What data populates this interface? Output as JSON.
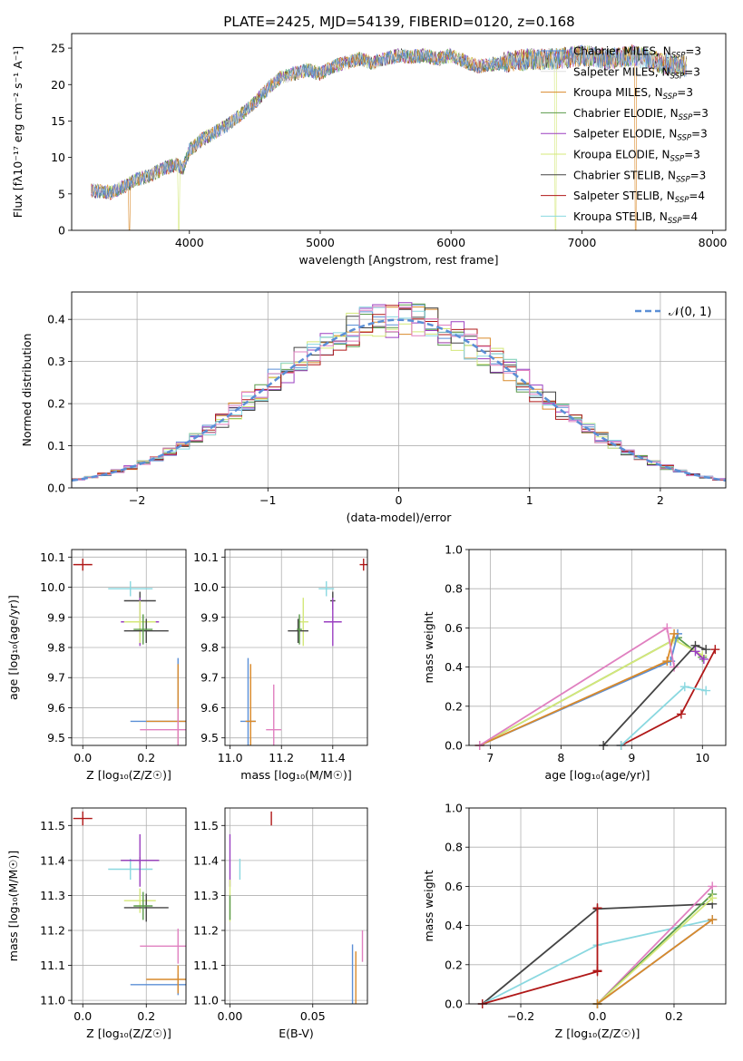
{
  "figure_title": "PLATE=2425, MJD=54139, FIBERID=0120, z=0.168",
  "colors": {
    "Chabrier MILES": "#5b8fd6",
    "Salpeter MILES": "#e0e0e0",
    "Kroupa MILES": "#d98a2b",
    "Chabrier ELODIE": "#5a9a4a",
    "Salpeter ELODIE": "#9a3fc0",
    "Kroupa ELODIE": "#d4e87a",
    "Chabrier STELIB": "#444444",
    "Salpeter STELIB": "#b01818",
    "Kroupa STELIB": "#8ad8e0",
    "pink": "#e080c0",
    "gaussian": "#5b8fd6"
  },
  "chart_data": [
    {
      "id": "spectrum",
      "type": "line",
      "title": "PLATE=2425, MJD=54139, FIBERID=0120, z=0.168",
      "xlabel": "wavelength [Angstrom, rest frame]",
      "ylabel": "Flux [fλ10⁻¹⁷ erg cm⁻² s⁻¹ A⁻¹]",
      "xlim": [
        3100,
        8100
      ],
      "ylim": [
        0,
        27
      ],
      "xticks": [
        "4000",
        "5000",
        "6000",
        "7000",
        "8000"
      ],
      "yticks": [
        "0",
        "5",
        "10",
        "15",
        "20",
        "25"
      ],
      "grid": false,
      "legend_position": "right",
      "legend": [
        {
          "label": "Chabrier MILES, N",
          "sub": "SSP",
          "suffix": "=3",
          "color": "Chabrier MILES"
        },
        {
          "label": "Salpeter MILES, N",
          "sub": "SSP",
          "suffix": "=3",
          "color": "Salpeter MILES"
        },
        {
          "label": "Kroupa MILES, N",
          "sub": "SSP",
          "suffix": "=3",
          "color": "Kroupa MILES"
        },
        {
          "label": "Chabrier ELODIE, N",
          "sub": "SSP",
          "suffix": "=3",
          "color": "Chabrier ELODIE"
        },
        {
          "label": "Salpeter ELODIE, N",
          "sub": "SSP",
          "suffix": "=3",
          "color": "Salpeter ELODIE"
        },
        {
          "label": "Kroupa ELODIE, N",
          "sub": "SSP",
          "suffix": "=3",
          "color": "Kroupa ELODIE"
        },
        {
          "label": "Chabrier STELIB, N",
          "sub": "SSP",
          "suffix": "=3",
          "color": "Chabrier STELIB"
        },
        {
          "label": "Salpeter STELIB, N",
          "sub": "SSP",
          "suffix": "=4",
          "color": "Salpeter STELIB"
        },
        {
          "label": "Kroupa STELIB, N",
          "sub": "SSP",
          "suffix": "=4",
          "color": "Kroupa STELIB"
        }
      ],
      "continuum": [
        [
          3250,
          5.5
        ],
        [
          3400,
          5.2
        ],
        [
          3500,
          6.0
        ],
        [
          3600,
          7.0
        ],
        [
          3700,
          7.5
        ],
        [
          3800,
          8.5
        ],
        [
          3900,
          9.0
        ],
        [
          3950,
          8.5
        ],
        [
          4000,
          11.0
        ],
        [
          4100,
          12.5
        ],
        [
          4200,
          13.5
        ],
        [
          4300,
          14.5
        ],
        [
          4400,
          16.0
        ],
        [
          4500,
          17.5
        ],
        [
          4600,
          19.5
        ],
        [
          4700,
          21.0
        ],
        [
          4800,
          21.5
        ],
        [
          4900,
          22.0
        ],
        [
          5000,
          21.5
        ],
        [
          5100,
          22.5
        ],
        [
          5200,
          23.0
        ],
        [
          5300,
          23.5
        ],
        [
          5400,
          23.0
        ],
        [
          5500,
          23.5
        ],
        [
          5600,
          24.0
        ],
        [
          5700,
          23.8
        ],
        [
          5800,
          24.0
        ],
        [
          5900,
          23.5
        ],
        [
          6000,
          24.0
        ],
        [
          6200,
          22.5
        ],
        [
          6400,
          23.0
        ],
        [
          6600,
          23.5
        ],
        [
          6800,
          23.5
        ],
        [
          7000,
          24.0
        ],
        [
          7200,
          23.5
        ],
        [
          7400,
          24.0
        ],
        [
          7600,
          23.0
        ],
        [
          7800,
          22.5
        ]
      ],
      "drops": [
        {
          "x": 3540,
          "series": "Kroupa MILES"
        },
        {
          "x": 3920,
          "series": "Kroupa ELODIE"
        },
        {
          "x": 6800,
          "series": "Kroupa ELODIE"
        },
        {
          "x": 7410,
          "series": "Kroupa MILES"
        }
      ]
    },
    {
      "id": "residuals",
      "type": "histogram",
      "xlabel": "(data-model)/error",
      "ylabel": "Normed distribution",
      "xlim": [
        -2.5,
        2.5
      ],
      "ylim": [
        0,
        0.465
      ],
      "xticks": [
        "−2",
        "−1",
        "0",
        "1",
        "2"
      ],
      "yticks": [
        "0.0",
        "0.1",
        "0.2",
        "0.3",
        "0.4"
      ],
      "grid": true,
      "legend_position": "top-right",
      "legend": [
        {
          "label": "𝒩(0, 1)",
          "color": "gaussian",
          "style": "dashed"
        }
      ],
      "bin_width": 0.1
    },
    {
      "id": "age-vs-Z",
      "type": "errorbar",
      "xlabel": "Z [log₁₀(Z/Z☉)]",
      "ylabel": "age  [log₁₀(age/yr)]",
      "xlim": [
        -0.035,
        0.325
      ],
      "ylim": [
        9.475,
        10.125
      ],
      "xticks": [
        "0.0",
        "0.2"
      ],
      "yticks": [
        "9.5",
        "9.6",
        "9.7",
        "9.8",
        "9.9",
        "10.0",
        "10.1"
      ],
      "grid": true,
      "points": [
        {
          "x": 0.0,
          "y": 10.075,
          "xerr": 0.03,
          "yerr": 0.02,
          "color": "Salpeter STELIB"
        },
        {
          "x": 0.15,
          "y": 9.995,
          "xerr": 0.07,
          "yerr": 0.025,
          "color": "Kroupa STELIB"
        },
        {
          "x": 0.18,
          "y": 9.955,
          "xerr": 0.05,
          "yerr": 0.03,
          "color": "Chabrier STELIB"
        },
        {
          "x": 0.18,
          "y": 9.885,
          "xerr": 0.06,
          "yerr": 0.08,
          "color": "Salpeter ELODIE"
        },
        {
          "x": 0.18,
          "y": 9.885,
          "xerr": 0.05,
          "yerr": 0.07,
          "color": "Kroupa ELODIE"
        },
        {
          "x": 0.2,
          "y": 9.855,
          "xerr": 0.07,
          "yerr": 0.04,
          "color": "Chabrier STELIB"
        },
        {
          "x": 0.19,
          "y": 9.86,
          "xerr": 0.03,
          "yerr": 0.05,
          "color": "Chabrier ELODIE"
        },
        {
          "x": 0.3,
          "y": 9.555,
          "xerr": 0.15,
          "yerr": 0.21,
          "color": "Chabrier MILES"
        },
        {
          "x": 0.3,
          "y": 9.555,
          "xerr": 0.1,
          "yerr": 0.19,
          "color": "Kroupa MILES"
        },
        {
          "x": 0.3,
          "y": 9.527,
          "xerr": 0.12,
          "yerr": 0.07,
          "color": "pink"
        }
      ]
    },
    {
      "id": "age-vs-mass",
      "type": "errorbar",
      "xlabel": "mass [log₁₀(M/M☉)]",
      "ylabel": "",
      "xlim": [
        10.98,
        11.535
      ],
      "ylim": [
        9.475,
        10.125
      ],
      "xticks": [
        "11.0",
        "11.2",
        "11.4"
      ],
      "yticks": [
        "9.5",
        "9.6",
        "9.7",
        "9.8",
        "9.9",
        "10.0",
        "10.1"
      ],
      "grid": true,
      "points": [
        {
          "x": 11.52,
          "y": 10.075,
          "xerr": 0.015,
          "yerr": 0.02,
          "color": "Salpeter STELIB"
        },
        {
          "x": 11.375,
          "y": 9.995,
          "xerr": 0.03,
          "yerr": 0.025,
          "color": "Kroupa STELIB"
        },
        {
          "x": 11.4,
          "y": 9.955,
          "xerr": 0.01,
          "yerr": 0.03,
          "color": "Chabrier STELIB"
        },
        {
          "x": 11.4,
          "y": 9.885,
          "xerr": 0.035,
          "yerr": 0.08,
          "color": "Salpeter ELODIE"
        },
        {
          "x": 11.285,
          "y": 9.885,
          "xerr": 0.02,
          "yerr": 0.08,
          "color": "Kroupa ELODIE"
        },
        {
          "x": 11.265,
          "y": 9.855,
          "xerr": 0.04,
          "yerr": 0.04,
          "color": "Chabrier STELIB"
        },
        {
          "x": 11.27,
          "y": 9.86,
          "xerr": 0.01,
          "yerr": 0.05,
          "color": "Chabrier ELODIE"
        },
        {
          "x": 11.07,
          "y": 9.555,
          "xerr": 0.03,
          "yerr": 0.21,
          "color": "Chabrier MILES"
        },
        {
          "x": 11.08,
          "y": 9.555,
          "xerr": 0.02,
          "yerr": 0.19,
          "color": "Kroupa MILES"
        },
        {
          "x": 11.17,
          "y": 9.527,
          "xerr": 0.03,
          "yerr": 0.15,
          "color": "pink"
        }
      ]
    },
    {
      "id": "massweight-vs-age",
      "type": "line",
      "xlabel": "age  [log₁₀(age/yr)]",
      "ylabel": "mass weight",
      "xlim": [
        6.7,
        10.33
      ],
      "ylim": [
        0,
        1
      ],
      "xticks": [
        "7",
        "8",
        "9",
        "10"
      ],
      "yticks": [
        "0.0",
        "0.2",
        "0.4",
        "0.6",
        "0.8",
        "1.0"
      ],
      "grid": true,
      "series": [
        {
          "color": "Chabrier ELODIE",
          "x": [
            6.85,
            9.65,
            10.0
          ],
          "y": [
            0.0,
            0.55,
            0.45
          ]
        },
        {
          "color": "Kroupa ELODIE",
          "x": [
            6.85,
            9.6,
            10.0
          ],
          "y": [
            0.0,
            0.54,
            0.46
          ]
        },
        {
          "color": "Chabrier MILES",
          "x": [
            6.85,
            9.55,
            9.65
          ],
          "y": [
            0.0,
            0.43,
            0.57
          ]
        },
        {
          "color": "Kroupa MILES",
          "x": [
            6.85,
            9.5,
            9.6
          ],
          "y": [
            0.0,
            0.43,
            0.57
          ]
        },
        {
          "color": "pink",
          "x": [
            6.85,
            9.5,
            9.6
          ],
          "y": [
            0.0,
            0.6,
            0.4
          ]
        },
        {
          "color": "Chabrier STELIB",
          "x": [
            8.6,
            9.9,
            10.05
          ],
          "y": [
            0.0,
            0.51,
            0.49
          ]
        },
        {
          "color": "Salpeter STELIB",
          "x": [
            8.85,
            9.7,
            10.18
          ],
          "y": [
            0.0,
            0.16,
            0.49
          ]
        },
        {
          "color": "Kroupa STELIB",
          "x": [
            8.85,
            9.75,
            10.05
          ],
          "y": [
            0.0,
            0.3,
            0.28
          ]
        },
        {
          "color": "Salpeter ELODIE",
          "x": [
            9.9,
            10.02
          ],
          "y": [
            0.48,
            0.44
          ]
        }
      ]
    },
    {
      "id": "mass-vs-Z",
      "type": "errorbar",
      "xlabel": "Z [log₁₀(Z/Z☉)]",
      "ylabel": "mass [log₁₀(M/M☉)]",
      "xlim": [
        -0.035,
        0.325
      ],
      "ylim": [
        10.99,
        11.55
      ],
      "xticks": [
        "0.0",
        "0.2"
      ],
      "yticks": [
        "11.0",
        "11.1",
        "11.2",
        "11.3",
        "11.4",
        "11.5"
      ],
      "grid": true,
      "points": [
        {
          "x": 0.0,
          "y": 11.52,
          "xerr": 0.03,
          "yerr": 0.02,
          "color": "Salpeter STELIB"
        },
        {
          "x": 0.15,
          "y": 11.375,
          "xerr": 0.07,
          "yerr": 0.03,
          "color": "Kroupa STELIB"
        },
        {
          "x": 0.18,
          "y": 11.4,
          "xerr": 0.06,
          "yerr": 0.01,
          "color": "Chabrier STELIB"
        },
        {
          "x": 0.18,
          "y": 11.4,
          "xerr": 0.06,
          "yerr": 0.075,
          "color": "Salpeter ELODIE"
        },
        {
          "x": 0.18,
          "y": 11.285,
          "xerr": 0.05,
          "yerr": 0.035,
          "color": "Kroupa ELODIE"
        },
        {
          "x": 0.2,
          "y": 11.265,
          "xerr": 0.07,
          "yerr": 0.04,
          "color": "Chabrier STELIB"
        },
        {
          "x": 0.19,
          "y": 11.27,
          "xerr": 0.03,
          "yerr": 0.04,
          "color": "Chabrier ELODIE"
        },
        {
          "x": 0.3,
          "y": 11.045,
          "xerr": 0.15,
          "yerr": 0.03,
          "color": "Chabrier MILES"
        },
        {
          "x": 0.3,
          "y": 11.06,
          "xerr": 0.1,
          "yerr": 0.04,
          "color": "Kroupa MILES"
        },
        {
          "x": 0.3,
          "y": 11.155,
          "xerr": 0.12,
          "yerr": 0.05,
          "color": "pink"
        }
      ]
    },
    {
      "id": "mass-vs-EBV",
      "type": "errorbar",
      "xlabel": "E(B-V)",
      "ylabel": "",
      "xlim": [
        -0.003,
        0.083
      ],
      "ylim": [
        10.99,
        11.55
      ],
      "xticks": [
        "0.00",
        "0.05"
      ],
      "yticks": [
        "11.0",
        "11.1",
        "11.2",
        "11.3",
        "11.4",
        "11.5"
      ],
      "grid": true,
      "points": [
        {
          "x": 0.025,
          "y": 11.52,
          "xerr": 0.0,
          "yerr": 0.02,
          "color": "Salpeter STELIB"
        },
        {
          "x": 0.006,
          "y": 11.375,
          "xerr": 0.0,
          "yerr": 0.03,
          "color": "Kroupa STELIB"
        },
        {
          "x": 0.0,
          "y": 11.4,
          "xerr": 0.0,
          "yerr": 0.075,
          "color": "Salpeter ELODIE"
        },
        {
          "x": 0.0,
          "y": 11.285,
          "xerr": 0.0,
          "yerr": 0.06,
          "color": "Kroupa ELODIE"
        },
        {
          "x": 0.0,
          "y": 11.265,
          "xerr": 0.0,
          "yerr": 0.035,
          "color": "Chabrier ELODIE"
        },
        {
          "x": 0.074,
          "y": 11.075,
          "xerr": 0.0,
          "yerr": 0.085,
          "color": "Chabrier MILES"
        },
        {
          "x": 0.076,
          "y": 11.06,
          "xerr": 0.0,
          "yerr": 0.08,
          "color": "Kroupa MILES"
        },
        {
          "x": 0.08,
          "y": 11.155,
          "xerr": 0.0,
          "yerr": 0.045,
          "color": "pink"
        }
      ]
    },
    {
      "id": "massweight-vs-Z",
      "type": "line",
      "xlabel": "Z [log₁₀(Z/Z☉)]",
      "ylabel": "mass weight",
      "xlim": [
        -0.335,
        0.335
      ],
      "ylim": [
        0,
        1
      ],
      "xticks": [
        "−0.2",
        "0.0",
        "0.2"
      ],
      "yticks": [
        "0.0",
        "0.2",
        "0.4",
        "0.6",
        "0.8",
        "1.0"
      ],
      "grid": true,
      "series": [
        {
          "color": "Chabrier STELIB",
          "x": [
            -0.3,
            0.0,
            0.3
          ],
          "y": [
            0.0,
            0.485,
            0.51
          ]
        },
        {
          "color": "Kroupa STELIB",
          "x": [
            -0.3,
            0.0,
            0.3
          ],
          "y": [
            0.0,
            0.3,
            0.43
          ]
        },
        {
          "color": "Salpeter STELIB",
          "x": [
            0.0,
            0.0
          ],
          "y": [
            0.17,
            0.49
          ]
        },
        {
          "color": "Salpeter STELIB",
          "x": [
            -0.3,
            0.0
          ],
          "y": [
            0.0,
            0.165
          ]
        },
        {
          "color": "pink",
          "x": [
            0.0,
            0.3
          ],
          "y": [
            0.0,
            0.6
          ]
        },
        {
          "color": "Chabrier ELODIE",
          "x": [
            0.0,
            0.3
          ],
          "y": [
            0.0,
            0.56
          ]
        },
        {
          "color": "Kroupa ELODIE",
          "x": [
            0.0,
            0.3
          ],
          "y": [
            0.0,
            0.54
          ]
        },
        {
          "color": "Chabrier MILES",
          "x": [
            0.0,
            0.3
          ],
          "y": [
            0.0,
            0.43
          ]
        },
        {
          "color": "Kroupa MILES",
          "x": [
            0.0,
            0.3
          ],
          "y": [
            0.0,
            0.43
          ]
        }
      ]
    }
  ]
}
